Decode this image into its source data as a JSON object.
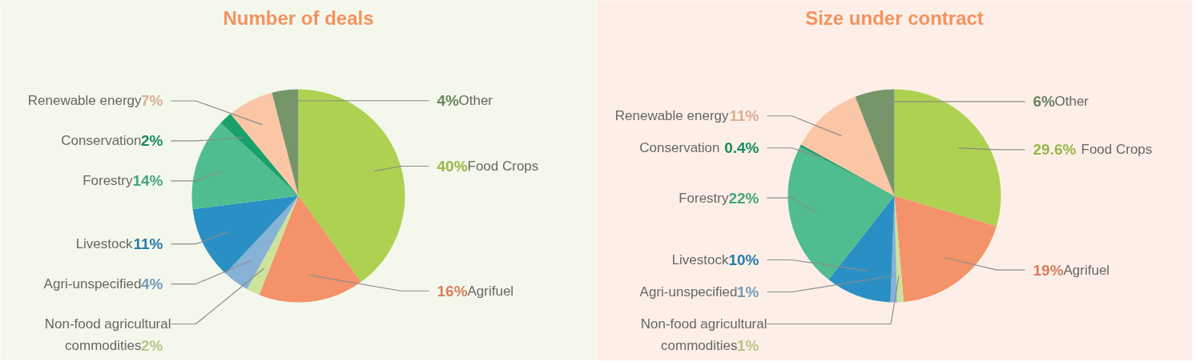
{
  "chart_data": [
    {
      "type": "pie",
      "title": "Number of deals",
      "categories": [
        "Food Crops",
        "Agrifuel",
        "Non-food agricultural commodities",
        "Agri-unspecified",
        "Livestock",
        "Forestry",
        "Conservation",
        "Renewable energy",
        "Other"
      ],
      "values": [
        40,
        16,
        2,
        4,
        11,
        14,
        2,
        7,
        4
      ],
      "value_labels": [
        "40%",
        "16%",
        "2%",
        "4%",
        "11%",
        "14%",
        "2%",
        "7%",
        "4%"
      ],
      "colors": [
        "#add150",
        "#f4926a",
        "#cde39a",
        "#86b2d6",
        "#2a8fc4",
        "#4fbd8f",
        "#1aa06a",
        "#fbc6a6",
        "#76966a"
      ]
    },
    {
      "type": "pie",
      "title": "Size under contract",
      "categories": [
        "Food Crops",
        "Agrifuel",
        "Non-food agricultural commodities",
        "Agri-unspecified",
        "Livestock",
        "Forestry",
        "Conservation",
        "Renewable energy",
        "Other"
      ],
      "values": [
        29.6,
        19,
        1,
        1,
        10,
        22,
        0.4,
        11,
        6
      ],
      "value_labels": [
        "29.6%",
        "19%",
        "1%",
        "1%",
        "10%",
        "22%",
        "0.4%",
        "11%",
        "6%"
      ],
      "colors": [
        "#add150",
        "#f4926a",
        "#cde39a",
        "#86b2d6",
        "#2a8fc4",
        "#4fbd8f",
        "#1aa06a",
        "#fbc6a6",
        "#76966a"
      ]
    }
  ]
}
